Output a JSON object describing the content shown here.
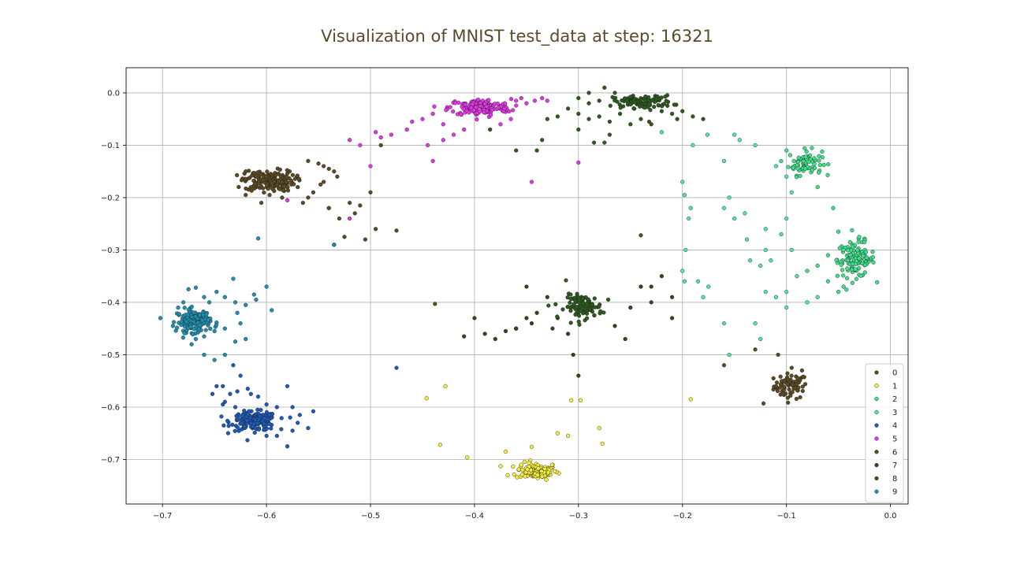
{
  "chart_data": {
    "type": "scatter",
    "title": "Visualization of MNIST test_data at step: 16321",
    "xlabel": "",
    "ylabel": "",
    "xlim": [
      -0.735,
      0.017
    ],
    "ylim": [
      -0.785,
      0.048
    ],
    "xticks": [
      -0.7,
      -0.6,
      -0.5,
      -0.4,
      -0.3,
      -0.2,
      -0.1,
      0.0
    ],
    "xtick_labels": [
      "−0.7",
      "−0.6",
      "−0.5",
      "−0.4",
      "−0.3",
      "−0.2",
      "−0.1",
      "0.0"
    ],
    "yticks": [
      0.0,
      -0.1,
      -0.2,
      -0.3,
      -0.4,
      -0.5,
      -0.6,
      -0.7
    ],
    "ytick_labels": [
      "0.0",
      "−0.1",
      "−0.2",
      "−0.3",
      "−0.4",
      "−0.5",
      "−0.6",
      "−0.7"
    ],
    "grid": true,
    "legend_position": "lower-right",
    "series": [
      {
        "name": "0",
        "color": "#5c4a24",
        "clusters": [
          {
            "cx": -0.096,
            "cy": -0.56,
            "sx": 0.008,
            "sy": 0.012,
            "n": 70
          }
        ],
        "points": [
          [
            -0.122,
            -0.593
          ],
          [
            -0.13,
            -0.49
          ],
          [
            -0.16,
            -0.52
          ],
          [
            -0.108,
            -0.5
          ],
          [
            -0.085,
            -0.53
          ],
          [
            -0.095,
            -0.525
          ],
          [
            -0.11,
            -0.56
          ]
        ]
      },
      {
        "name": "1",
        "color": "#f5ed3c",
        "clusters": [
          {
            "cx": -0.34,
            "cy": -0.722,
            "sx": 0.01,
            "sy": 0.008,
            "n": 110
          }
        ],
        "points": [
          [
            -0.368,
            -0.73
          ],
          [
            -0.355,
            -0.71
          ],
          [
            -0.345,
            -0.676
          ],
          [
            -0.37,
            -0.685
          ],
          [
            -0.407,
            -0.696
          ],
          [
            -0.433,
            -0.672
          ],
          [
            -0.428,
            -0.56
          ],
          [
            -0.31,
            -0.655
          ],
          [
            -0.298,
            -0.587
          ],
          [
            -0.307,
            -0.587
          ],
          [
            -0.28,
            -0.64
          ],
          [
            -0.277,
            -0.67
          ],
          [
            -0.192,
            -0.585
          ],
          [
            -0.446,
            -0.583
          ],
          [
            -0.32,
            -0.65
          ]
        ]
      },
      {
        "name": "2",
        "color": "#3ee08a",
        "clusters": [
          {
            "cx": -0.082,
            "cy": -0.133,
            "sx": 0.008,
            "sy": 0.012,
            "n": 70
          },
          {
            "cx": -0.033,
            "cy": -0.318,
            "sx": 0.009,
            "sy": 0.017,
            "n": 120
          }
        ],
        "points": [
          [
            -0.1,
            -0.11
          ],
          [
            -0.07,
            -0.18
          ],
          [
            -0.055,
            -0.22
          ],
          [
            -0.05,
            -0.265
          ],
          [
            -0.045,
            -0.3
          ],
          [
            -0.06,
            -0.31
          ],
          [
            -0.07,
            -0.33
          ],
          [
            -0.03,
            -0.275
          ],
          [
            -0.025,
            -0.285
          ],
          [
            -0.05,
            -0.38
          ],
          [
            -0.06,
            -0.36
          ],
          [
            -0.045,
            -0.37
          ],
          [
            -0.08,
            -0.34
          ]
        ]
      },
      {
        "name": "3",
        "color": "#4fe6a3",
        "clusters": [],
        "points": [
          [
            -0.19,
            -0.1
          ],
          [
            -0.22,
            -0.075
          ],
          [
            -0.2,
            -0.17
          ],
          [
            -0.198,
            -0.195
          ],
          [
            -0.192,
            -0.22
          ],
          [
            -0.194,
            -0.24
          ],
          [
            -0.197,
            -0.3
          ],
          [
            -0.2,
            -0.34
          ],
          [
            -0.198,
            -0.36
          ],
          [
            -0.185,
            -0.36
          ],
          [
            -0.18,
            -0.39
          ],
          [
            -0.175,
            -0.37
          ],
          [
            -0.16,
            -0.44
          ],
          [
            -0.155,
            -0.5
          ],
          [
            -0.13,
            -0.44
          ],
          [
            -0.125,
            -0.47
          ],
          [
            -0.12,
            -0.38
          ],
          [
            -0.11,
            -0.39
          ],
          [
            -0.125,
            -0.33
          ],
          [
            -0.135,
            -0.32
          ],
          [
            -0.115,
            -0.32
          ],
          [
            -0.12,
            -0.3
          ],
          [
            -0.105,
            -0.27
          ],
          [
            -0.12,
            -0.26
          ],
          [
            -0.138,
            -0.28
          ],
          [
            -0.15,
            -0.24
          ],
          [
            -0.14,
            -0.23
          ],
          [
            -0.16,
            -0.22
          ],
          [
            -0.155,
            -0.2
          ],
          [
            -0.16,
            -0.13
          ],
          [
            -0.145,
            -0.09
          ],
          [
            -0.15,
            -0.08
          ],
          [
            -0.13,
            -0.1
          ],
          [
            -0.11,
            -0.14
          ],
          [
            -0.1,
            -0.16
          ],
          [
            -0.095,
            -0.19
          ],
          [
            -0.1,
            -0.24
          ],
          [
            -0.095,
            -0.3
          ],
          [
            -0.09,
            -0.35
          ],
          [
            -0.08,
            -0.4
          ],
          [
            -0.07,
            -0.39
          ],
          [
            -0.1,
            -0.41
          ],
          [
            -0.176,
            -0.08
          ],
          [
            -0.1,
            -0.38
          ]
        ]
      },
      {
        "name": "4",
        "color": "#1d5bbb",
        "clusters": [
          {
            "cx": -0.612,
            "cy": -0.627,
            "sx": 0.011,
            "sy": 0.009,
            "n": 180
          }
        ],
        "points": [
          [
            -0.642,
            -0.56
          ],
          [
            -0.635,
            -0.575
          ],
          [
            -0.628,
            -0.57
          ],
          [
            -0.615,
            -0.575
          ],
          [
            -0.6,
            -0.595
          ],
          [
            -0.59,
            -0.6
          ],
          [
            -0.58,
            -0.56
          ],
          [
            -0.575,
            -0.6
          ],
          [
            -0.568,
            -0.615
          ],
          [
            -0.555,
            -0.608
          ],
          [
            -0.57,
            -0.63
          ],
          [
            -0.56,
            -0.64
          ],
          [
            -0.575,
            -0.645
          ],
          [
            -0.59,
            -0.655
          ],
          [
            -0.6,
            -0.655
          ],
          [
            -0.63,
            -0.6
          ],
          [
            -0.64,
            -0.59
          ],
          [
            -0.648,
            -0.56
          ],
          [
            -0.618,
            -0.565
          ],
          [
            -0.608,
            -0.58
          ],
          [
            -0.475,
            -0.525
          ],
          [
            -0.632,
            -0.52
          ],
          [
            -0.625,
            -0.54
          ],
          [
            -0.652,
            -0.575
          ],
          [
            -0.642,
            -0.595
          ],
          [
            -0.58,
            -0.675
          ]
        ]
      },
      {
        "name": "5",
        "color": "#e535e8",
        "clusters": [
          {
            "cx": -0.395,
            "cy": -0.028,
            "sx": 0.015,
            "sy": 0.008,
            "n": 150
          }
        ],
        "points": [
          [
            -0.44,
            -0.04
          ],
          [
            -0.45,
            -0.05
          ],
          [
            -0.46,
            -0.055
          ],
          [
            -0.465,
            -0.07
          ],
          [
            -0.48,
            -0.08
          ],
          [
            -0.49,
            -0.085
          ],
          [
            -0.495,
            -0.075
          ],
          [
            -0.52,
            -0.09
          ],
          [
            -0.51,
            -0.1
          ],
          [
            -0.445,
            -0.1
          ],
          [
            -0.43,
            -0.09
          ],
          [
            -0.42,
            -0.08
          ],
          [
            -0.41,
            -0.07
          ],
          [
            -0.375,
            -0.06
          ],
          [
            -0.365,
            -0.05
          ],
          [
            -0.36,
            -0.015
          ],
          [
            -0.355,
            -0.01
          ],
          [
            -0.35,
            -0.02
          ],
          [
            -0.342,
            -0.015
          ],
          [
            -0.335,
            -0.01
          ],
          [
            -0.33,
            -0.015
          ],
          [
            -0.43,
            -0.06
          ],
          [
            -0.44,
            -0.13
          ],
          [
            -0.5,
            -0.14
          ],
          [
            -0.3,
            -0.133
          ],
          [
            -0.345,
            -0.17
          ],
          [
            -0.58,
            -0.205
          ],
          [
            -0.54,
            -0.22
          ],
          [
            -0.52,
            -0.24
          ]
        ]
      },
      {
        "name": "6",
        "color": "#5c4a24",
        "clusters": [
          {
            "cx": -0.597,
            "cy": -0.168,
            "sx": 0.012,
            "sy": 0.01,
            "n": 170
          }
        ],
        "points": [
          [
            -0.56,
            -0.13
          ],
          [
            -0.55,
            -0.135
          ],
          [
            -0.545,
            -0.14
          ],
          [
            -0.54,
            -0.145
          ],
          [
            -0.535,
            -0.15
          ],
          [
            -0.548,
            -0.175
          ],
          [
            -0.555,
            -0.19
          ],
          [
            -0.56,
            -0.2
          ],
          [
            -0.565,
            -0.21
          ],
          [
            -0.54,
            -0.22
          ],
          [
            -0.545,
            -0.17
          ],
          [
            -0.532,
            -0.16
          ],
          [
            -0.53,
            -0.24
          ],
          [
            -0.525,
            -0.275
          ],
          [
            -0.515,
            -0.23
          ],
          [
            -0.51,
            -0.215
          ],
          [
            -0.5,
            -0.19
          ],
          [
            -0.605,
            -0.21
          ],
          [
            -0.62,
            -0.195
          ],
          [
            -0.615,
            -0.18
          ],
          [
            -0.597,
            -0.195
          ],
          [
            -0.585,
            -0.2
          ],
          [
            -0.57,
            -0.18
          ],
          [
            -0.62,
            -0.15
          ],
          [
            -0.495,
            -0.26
          ],
          [
            -0.475,
            -0.263
          ],
          [
            -0.505,
            -0.28
          ],
          [
            -0.49,
            -0.1
          ],
          [
            -0.535,
            -0.29
          ],
          [
            -0.232,
            -0.055
          ],
          [
            -0.33,
            -0.05
          ],
          [
            -0.52,
            -0.21
          ],
          [
            -0.438,
            -0.403
          ],
          [
            -0.312,
            -0.358
          ],
          [
            -0.24,
            -0.272
          ]
        ]
      },
      {
        "name": "7",
        "color": "#4a3a1c",
        "clusters": [],
        "points": [
          [
            -0.39,
            -0.46
          ],
          [
            -0.38,
            -0.47
          ],
          [
            -0.37,
            -0.455
          ],
          [
            -0.36,
            -0.45
          ],
          [
            -0.345,
            -0.44
          ],
          [
            -0.34,
            -0.42
          ],
          [
            -0.35,
            -0.37
          ],
          [
            -0.33,
            -0.39
          ],
          [
            -0.32,
            -0.43
          ],
          [
            -0.325,
            -0.45
          ],
          [
            -0.31,
            -0.46
          ],
          [
            -0.305,
            -0.5
          ],
          [
            -0.3,
            -0.54
          ],
          [
            -0.265,
            -0.445
          ],
          [
            -0.255,
            -0.47
          ],
          [
            -0.25,
            -0.41
          ],
          [
            -0.24,
            -0.37
          ],
          [
            -0.23,
            -0.4
          ],
          [
            -0.21,
            -0.39
          ],
          [
            -0.21,
            -0.43
          ],
          [
            -0.23,
            -0.37
          ],
          [
            -0.22,
            -0.35
          ],
          [
            -0.35,
            -0.43
          ],
          [
            -0.4,
            -0.43
          ],
          [
            -0.36,
            -0.45
          ],
          [
            -0.41,
            -0.465
          ]
        ]
      },
      {
        "name": "8",
        "color": "#2d5a1f",
        "clusters": [
          {
            "cx": -0.238,
            "cy": -0.017,
            "sx": 0.014,
            "sy": 0.006,
            "n": 100
          },
          {
            "cx": -0.295,
            "cy": -0.408,
            "sx": 0.009,
            "sy": 0.011,
            "n": 110
          }
        ],
        "points": [
          [
            -0.28,
            -0.015
          ],
          [
            -0.29,
            -0.02
          ],
          [
            -0.3,
            -0.01
          ],
          [
            -0.31,
            -0.03
          ],
          [
            -0.3,
            -0.04
          ],
          [
            -0.29,
            -0.05
          ],
          [
            -0.28,
            -0.045
          ],
          [
            -0.27,
            -0.055
          ],
          [
            -0.26,
            -0.04
          ],
          [
            -0.25,
            -0.06
          ],
          [
            -0.24,
            -0.05
          ],
          [
            -0.23,
            -0.06
          ],
          [
            -0.22,
            -0.035
          ],
          [
            -0.21,
            -0.04
          ],
          [
            -0.205,
            -0.05
          ],
          [
            -0.2,
            -0.035
          ],
          [
            -0.19,
            -0.045
          ],
          [
            -0.18,
            -0.05
          ],
          [
            -0.27,
            -0.08
          ],
          [
            -0.275,
            -0.095
          ],
          [
            -0.285,
            -0.095
          ],
          [
            -0.3,
            -0.07
          ],
          [
            -0.32,
            -0.045
          ],
          [
            -0.335,
            -0.09
          ],
          [
            -0.34,
            -0.11
          ],
          [
            -0.36,
            -0.11
          ],
          [
            -0.385,
            -0.07
          ],
          [
            -0.29,
            -0.0
          ],
          [
            -0.275,
            0.01
          ],
          [
            -0.265,
            0.0
          ]
        ]
      },
      {
        "name": "9",
        "color": "#1f8fb0",
        "clusters": [
          {
            "cx": -0.67,
            "cy": -0.435,
            "sx": 0.008,
            "sy": 0.011,
            "n": 140
          }
        ],
        "points": [
          [
            -0.702,
            -0.43
          ],
          [
            -0.685,
            -0.41
          ],
          [
            -0.68,
            -0.4
          ],
          [
            -0.675,
            -0.375
          ],
          [
            -0.668,
            -0.372
          ],
          [
            -0.66,
            -0.39
          ],
          [
            -0.655,
            -0.4
          ],
          [
            -0.648,
            -0.38
          ],
          [
            -0.64,
            -0.39
          ],
          [
            -0.63,
            -0.4
          ],
          [
            -0.628,
            -0.42
          ],
          [
            -0.62,
            -0.405
          ],
          [
            -0.625,
            -0.44
          ],
          [
            -0.64,
            -0.45
          ],
          [
            -0.65,
            -0.455
          ],
          [
            -0.66,
            -0.465
          ],
          [
            -0.668,
            -0.47
          ],
          [
            -0.672,
            -0.48
          ],
          [
            -0.66,
            -0.5
          ],
          [
            -0.65,
            -0.51
          ],
          [
            -0.64,
            -0.5
          ],
          [
            -0.63,
            -0.475
          ],
          [
            -0.62,
            -0.47
          ],
          [
            -0.61,
            -0.395
          ],
          [
            -0.6,
            -0.37
          ],
          [
            -0.595,
            -0.415
          ],
          [
            -0.632,
            -0.355
          ],
          [
            -0.612,
            -0.385
          ],
          [
            -0.608,
            -0.278
          ],
          [
            -0.535,
            -0.29
          ],
          [
            -0.69,
            -0.445
          ]
        ]
      }
    ]
  }
}
